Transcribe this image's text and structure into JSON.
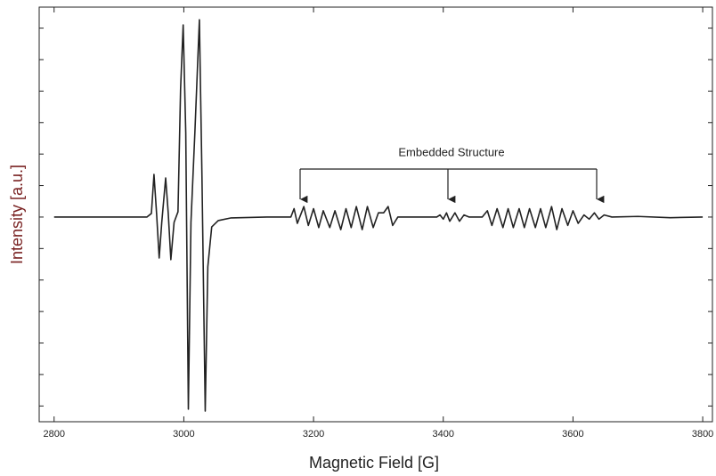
{
  "chart_data": {
    "type": "line",
    "xlabel": "Magnetic Field [G]",
    "ylabel": "Intensity [a.u.]",
    "annotation": "Embedded Structure",
    "color": "#222222",
    "ylabel_color": "#7a2323",
    "xlim": [
      2777,
      3815
    ],
    "ylim": [
      -0.975,
      1
    ],
    "xticks": [
      2800,
      3000,
      3200,
      3400,
      3600,
      3800
    ],
    "yticks": [
      -0.9,
      -0.75,
      -0.6,
      -0.45,
      -0.3,
      -0.15,
      0,
      0.15,
      0.3,
      0.45,
      0.6,
      0.75,
      0.9
    ],
    "x": [
      2800,
      2900,
      2943,
      2950,
      2954,
      2958,
      2962,
      2966,
      2972,
      2976,
      2980,
      2985,
      2991,
      2995,
      2999,
      3003,
      3007,
      3011,
      3017,
      3024,
      3028,
      3033,
      3037,
      3043,
      3053,
      3073,
      3128,
      3165,
      3170,
      3175,
      3185,
      3192,
      3200,
      3208,
      3215,
      3225,
      3233,
      3242,
      3250,
      3258,
      3266,
      3275,
      3283,
      3292,
      3300,
      3308,
      3315,
      3322,
      3330,
      3390,
      3395,
      3400,
      3405,
      3410,
      3418,
      3425,
      3432,
      3440,
      3460,
      3468,
      3475,
      3483,
      3492,
      3500,
      3508,
      3517,
      3525,
      3533,
      3542,
      3550,
      3558,
      3567,
      3575,
      3583,
      3592,
      3600,
      3608,
      3617,
      3625,
      3633,
      3640,
      3648,
      3660,
      3700,
      3750,
      3800
    ],
    "values": [
      0,
      0,
      0,
      0.017,
      0.203,
      0.017,
      -0.195,
      -0.025,
      0.186,
      0.017,
      -0.203,
      -0.025,
      0.025,
      0.61,
      0.915,
      0.4,
      -0.915,
      -0.025,
      0.4,
      0.94,
      0.186,
      -0.924,
      -0.237,
      -0.047,
      -0.017,
      -0.004,
      0,
      0,
      0.04,
      -0.03,
      0.05,
      -0.04,
      0.04,
      -0.05,
      0.03,
      -0.05,
      0.03,
      -0.06,
      0.04,
      -0.05,
      0.05,
      -0.06,
      0.05,
      -0.05,
      0.02,
      0.02,
      0.05,
      -0.04,
      0,
      0,
      0.01,
      -0.01,
      0.02,
      -0.02,
      0.02,
      -0.02,
      0.01,
      0,
      0,
      0.03,
      -0.04,
      0.04,
      -0.05,
      0.04,
      -0.05,
      0.04,
      -0.05,
      0.04,
      -0.05,
      0.04,
      -0.05,
      0.05,
      -0.06,
      0.04,
      -0.04,
      0.03,
      -0.03,
      0.01,
      -0.01,
      0.02,
      -0.01,
      0.01,
      0,
      0.003,
      -0.003,
      0
    ]
  }
}
